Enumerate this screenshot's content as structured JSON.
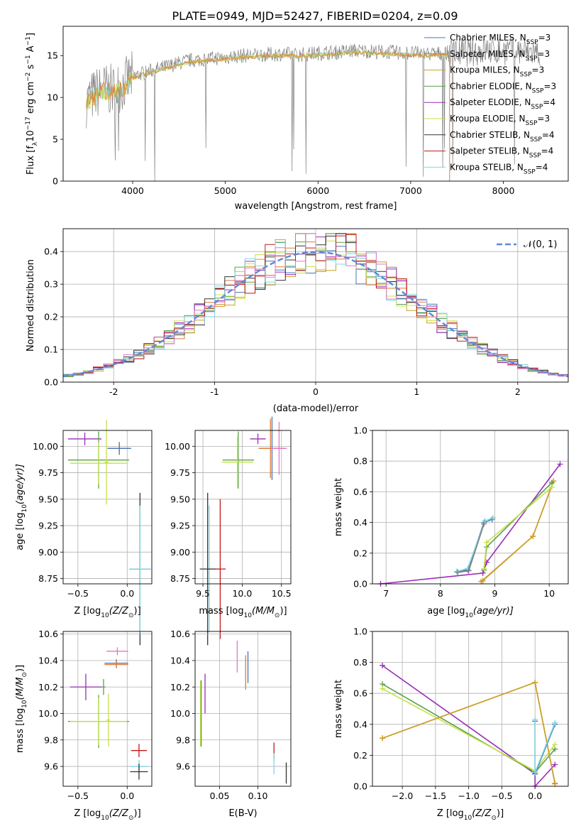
{
  "figure_title": "PLATE=0949, MJD=52427, FIBERID=0204, z=0.09",
  "legend_entries": [
    {
      "label": "Chabrier MILES, N",
      "sub": "SSP",
      "suffix": "=3",
      "color": "#4a76b5"
    },
    {
      "label": "Salpeter MILES, N",
      "sub": "SSP",
      "suffix": "=3",
      "color": "#e07b39"
    },
    {
      "label": "Kroupa MILES, N",
      "sub": "SSP",
      "suffix": "=3",
      "color": "#c9a227"
    },
    {
      "label": "Chabrier ELODIE, N",
      "sub": "SSP",
      "suffix": "=3",
      "color": "#5aa04a"
    },
    {
      "label": "Salpeter ELODIE, N",
      "sub": "SSP",
      "suffix": "=4",
      "color": "#9a2cb8"
    },
    {
      "label": "Kroupa ELODIE, N",
      "sub": "SSP",
      "suffix": "=3",
      "color": "#c6e04a"
    },
    {
      "label": "Chabrier STELIB, N",
      "sub": "SSP",
      "suffix": "=4",
      "color": "#333333"
    },
    {
      "label": "Salpeter STELIB, N",
      "sub": "SSP",
      "suffix": "=4",
      "color": "#c01818"
    },
    {
      "label": "Kroupa STELIB, N",
      "sub": "SSP",
      "suffix": "=4",
      "color": "#7fd7e0"
    }
  ],
  "chart_data": [
    {
      "id": "spectrum",
      "type": "line",
      "xlabel": "wavelength [Angstrom, rest frame]",
      "ylabel": "Flux [f",
      "ylabel_sub": "λ",
      "ylabel_mid": "10",
      "ylabel_sup1": "−17",
      "ylabel_mid2": " erg cm",
      "ylabel_sup2": "−2",
      "ylabel_mid3": " s",
      "ylabel_sup3": "−1",
      "ylabel_mid4": " A",
      "ylabel_sup4": "−1",
      "ylabel_end": "]",
      "xlim": [
        3250,
        8700
      ],
      "ylim": [
        0,
        18.5
      ],
      "xticks": [
        4000,
        5000,
        6000,
        7000,
        8000
      ],
      "yticks": [
        0,
        5,
        10,
        15
      ],
      "data_color": "#808080",
      "model_colors": [
        "#7fd7e0",
        "#c6e04a",
        "#e07b39"
      ],
      "series": [
        {
          "name": "data",
          "x": [
            3500,
            3600,
            3700,
            3800,
            3900,
            4000,
            4200,
            4400,
            4600,
            4800,
            5000,
            5200,
            5400,
            5600,
            5800,
            6000,
            6200,
            6400,
            6600,
            6800,
            7000,
            7200,
            7400,
            7600,
            7800,
            8000,
            8200,
            8400
          ],
          "y": [
            9.5,
            10.5,
            11.0,
            10.8,
            11.5,
            12.5,
            13.2,
            13.8,
            14.4,
            14.6,
            14.8,
            15.0,
            15.1,
            15.2,
            15.1,
            15.3,
            15.4,
            15.6,
            15.5,
            15.4,
            15.3,
            15.2,
            15.3,
            15.4,
            15.6,
            15.6,
            15.5,
            15.3
          ]
        },
        {
          "name": "model",
          "x": [
            3500,
            3600,
            3700,
            3800,
            3900,
            4000,
            4200,
            4400,
            4600,
            4800,
            5000,
            5200,
            5400,
            5600,
            5800,
            6000,
            6200,
            6400,
            6600,
            6800,
            7000,
            7200,
            7400
          ],
          "y": [
            9.3,
            10.2,
            10.8,
            10.6,
            11.2,
            12.3,
            13.0,
            13.6,
            14.2,
            14.4,
            14.6,
            14.8,
            14.9,
            15.0,
            14.9,
            15.1,
            15.2,
            15.4,
            15.3,
            15.2,
            15.1,
            15.0,
            15.1
          ]
        }
      ]
    },
    {
      "id": "residuals",
      "type": "line",
      "xlabel": "(data-model)/error",
      "ylabel": "Normed distribution",
      "xlim": [
        -2.5,
        2.5
      ],
      "ylim": [
        0,
        0.47
      ],
      "xticks": [
        -2,
        -1,
        0,
        1,
        2
      ],
      "yticks": [
        0.0,
        0.1,
        0.2,
        0.3,
        0.4
      ],
      "ytick_labels": [
        "0.0",
        "0.1",
        "0.2",
        "0.3",
        "0.4"
      ],
      "legend_label": "𝒩(0, 1)",
      "gauss_color": "#5b8bd6",
      "hist_colors": [
        "#4a76b5",
        "#e07b39",
        "#c9a227",
        "#5aa04a",
        "#9a2cb8",
        "#c6e04a",
        "#333333",
        "#c01818",
        "#7fd7e0",
        "#e377c2"
      ]
    },
    {
      "id": "age_vs_Z",
      "type": "scatter",
      "xlabel": "Z [log",
      "xlabel_sub": "10",
      "xlabel_rest": "(Z/Z",
      "xlabel_sub2": "⊙",
      "xlabel_end": ")]",
      "ylabel": "age  [log",
      "ylabel_sub": "10",
      "ylabel_rest": "(age/yr)]",
      "xlim": [
        -0.65,
        0.25
      ],
      "ylim": [
        8.7,
        10.15
      ],
      "xticks": [
        -0.5,
        0.0
      ],
      "xtick_labels": [
        "−0.5",
        "0.0"
      ],
      "yticks": [
        8.75,
        9.0,
        9.25,
        9.5,
        9.75,
        10.0
      ],
      "ytick_labels": [
        "8.75",
        "9.00",
        "9.25",
        "9.50",
        "9.75",
        "10.00"
      ],
      "points": [
        {
          "x": -0.43,
          "y": 10.07,
          "xerr": 0.17,
          "yerr": 0.06,
          "color": "#9a2cb8"
        },
        {
          "x": -0.08,
          "y": 9.98,
          "xerr": 0.12,
          "yerr": 0.06,
          "color": "#e07b39"
        },
        {
          "x": -0.08,
          "y": 9.98,
          "xerr": 0.12,
          "yerr": 0.06,
          "color": "#4a76b5"
        },
        {
          "x": -0.29,
          "y": 9.87,
          "xerr": 0.31,
          "yerr": 0.27,
          "color": "#5aa04a"
        },
        {
          "x": -0.29,
          "y": 9.84,
          "xerr": 0.29,
          "yerr": 0.2,
          "color": "#c6e04a"
        },
        {
          "x": -0.21,
          "y": 9.85,
          "xerr": 0.02,
          "yerr": 0.4,
          "color": "#c6e04a"
        },
        {
          "x": 0.13,
          "y": 8.84,
          "xerr": 0.11,
          "yerr": 0.72,
          "color": "#333333"
        },
        {
          "x": 0.13,
          "y": 8.84,
          "xerr": 0.11,
          "yerr": 0.6,
          "color": "#7fd7e0"
        }
      ]
    },
    {
      "id": "age_vs_mass",
      "type": "scatter",
      "xlabel": "mass [log",
      "xlabel_sub": "10",
      "xlabel_rest": "(M/M",
      "xlabel_sub2": "⊙",
      "xlabel_end": ")]",
      "xlim": [
        9.4,
        10.62
      ],
      "ylim": [
        8.7,
        10.15
      ],
      "xticks": [
        9.5,
        10.0,
        10.5
      ],
      "xtick_labels": [
        "9.5",
        "10.0",
        "10.5"
      ],
      "yticks": [
        8.75,
        9.0,
        9.25,
        9.5,
        9.75,
        10.0
      ],
      "ytick_labels": [
        "8.75",
        "9.00",
        "9.25",
        "9.50",
        "9.75",
        "10.00"
      ],
      "points": [
        {
          "x": 10.2,
          "y": 10.07,
          "xerr": 0.1,
          "yerr": 0.05,
          "color": "#9a2cb8"
        },
        {
          "x": 10.38,
          "y": 9.98,
          "xerr": 0.17,
          "yerr": 0.3,
          "color": "#4a76b5"
        },
        {
          "x": 10.36,
          "y": 9.98,
          "xerr": 0.15,
          "yerr": 0.28,
          "color": "#e07b39"
        },
        {
          "x": 10.47,
          "y": 9.98,
          "xerr": 0.1,
          "yerr": 0.25,
          "color": "#e377c2"
        },
        {
          "x": 9.95,
          "y": 9.87,
          "xerr": 0.2,
          "yerr": 0.27,
          "color": "#5aa04a"
        },
        {
          "x": 9.94,
          "y": 9.85,
          "xerr": 0.2,
          "yerr": 0.24,
          "color": "#c6e04a"
        },
        {
          "x": 9.72,
          "y": 8.84,
          "xerr": 0.07,
          "yerr": 0.66,
          "color": "#c01818"
        },
        {
          "x": 9.58,
          "y": 8.84,
          "xerr": 0.07,
          "yerr": 0.6,
          "color": "#7fd7e0"
        },
        {
          "x": 9.56,
          "y": 8.84,
          "xerr": 0.1,
          "yerr": 0.72,
          "color": "#333333"
        }
      ]
    },
    {
      "id": "massweight_vs_age",
      "type": "line",
      "xlabel": "age  [log",
      "xlabel_sub": "10",
      "xlabel_rest": "(age/yr)]",
      "ylabel": "mass weight",
      "xlim": [
        6.75,
        10.35
      ],
      "ylim": [
        0.0,
        1.0
      ],
      "xticks": [
        7,
        8,
        9,
        10
      ],
      "yticks": [
        0.0,
        0.2,
        0.4,
        0.6,
        0.8,
        1.0
      ],
      "ytick_labels": [
        "0.0",
        "0.2",
        "0.4",
        "0.6",
        "0.8",
        "1.0"
      ],
      "series": [
        {
          "color": "#9a2cb8",
          "x": [
            6.9,
            8.78,
            8.85,
            10.2
          ],
          "y": [
            0.0,
            0.07,
            0.14,
            0.78
          ]
        },
        {
          "color": "#e07b39",
          "x": [
            8.75,
            9.7,
            10.08
          ],
          "y": [
            0.015,
            0.31,
            0.67
          ]
        },
        {
          "color": "#c9a227",
          "x": [
            8.78,
            9.7,
            10.08
          ],
          "y": [
            0.02,
            0.31,
            0.67
          ]
        },
        {
          "color": "#5aa04a",
          "x": [
            8.8,
            8.85,
            10.05
          ],
          "y": [
            0.09,
            0.24,
            0.66
          ]
        },
        {
          "color": "#c6e04a",
          "x": [
            8.8,
            8.85,
            10.05
          ],
          "y": [
            0.1,
            0.27,
            0.63
          ]
        },
        {
          "color": "#4a76b5",
          "x": [
            8.3,
            8.5,
            8.8,
            8.95
          ],
          "y": [
            0.08,
            0.09,
            0.4,
            0.42
          ]
        },
        {
          "color": "#7fd7e0",
          "x": [
            8.3,
            8.5,
            8.82,
            8.97
          ],
          "y": [
            0.08,
            0.1,
            0.41,
            0.43
          ]
        },
        {
          "color": "#808080",
          "x": [
            8.32,
            8.52,
            8.8
          ],
          "y": [
            0.075,
            0.085,
            0.39
          ]
        }
      ]
    },
    {
      "id": "mass_vs_Z",
      "type": "scatter",
      "xlabel": "Z [log",
      "xlabel_sub": "10",
      "xlabel_rest": "(Z/Z",
      "xlabel_sub2": "⊙",
      "xlabel_end": ")]",
      "ylabel": "mass [log",
      "ylabel_sub": "10",
      "ylabel_rest": "(M/M",
      "ylabel_sub2": "⊙",
      "ylabel_end": ")]",
      "xlim": [
        -0.65,
        0.25
      ],
      "ylim": [
        9.45,
        10.62
      ],
      "xticks": [
        -0.5,
        0.0
      ],
      "xtick_labels": [
        "−0.5",
        "0.0"
      ],
      "yticks": [
        9.6,
        9.8,
        10.0,
        10.2,
        10.4,
        10.6
      ],
      "ytick_labels": [
        "9.6",
        "9.8",
        "10.0",
        "10.2",
        "10.4",
        "10.6"
      ],
      "points": [
        {
          "x": -0.1,
          "y": 10.47,
          "xerr": 0.11,
          "yerr": 0.03,
          "color": "#e377c2"
        },
        {
          "x": -0.11,
          "y": 10.38,
          "xerr": 0.12,
          "yerr": 0.03,
          "color": "#4a76b5"
        },
        {
          "x": -0.11,
          "y": 10.37,
          "xerr": 0.12,
          "yerr": 0.03,
          "color": "#e07b39"
        },
        {
          "x": -0.42,
          "y": 10.2,
          "xerr": 0.16,
          "yerr": 0.1,
          "color": "#9a2cb8"
        },
        {
          "x": -0.24,
          "y": 10.2,
          "xerr": 0.02,
          "yerr": 0.06,
          "color": "#5aa04a"
        },
        {
          "x": -0.29,
          "y": 9.94,
          "xerr": 0.31,
          "yerr": 0.2,
          "color": "#5aa04a"
        },
        {
          "x": -0.29,
          "y": 9.94,
          "xerr": 0.29,
          "yerr": 0.18,
          "color": "#c6e04a"
        },
        {
          "x": -0.19,
          "y": 9.95,
          "xerr": 0.02,
          "yerr": 0.2,
          "color": "#c6e04a"
        },
        {
          "x": 0.12,
          "y": 9.72,
          "xerr": 0.08,
          "yerr": 0.05,
          "color": "#c01818"
        },
        {
          "x": 0.12,
          "y": 9.6,
          "xerr": 0.09,
          "yerr": 0.05,
          "color": "#7fd7e0"
        },
        {
          "x": 0.12,
          "y": 9.56,
          "xerr": 0.09,
          "yerr": 0.06,
          "color": "#333333"
        }
      ]
    },
    {
      "id": "mass_vs_EBV",
      "type": "scatter",
      "xlabel": "E(B-V)",
      "xlim": [
        0.018,
        0.143
      ],
      "ylim": [
        9.45,
        10.62
      ],
      "xticks": [
        0.05,
        0.1
      ],
      "xtick_labels": [
        "0.05",
        "0.10"
      ],
      "yticks": [
        9.6,
        9.8,
        10.0,
        10.2,
        10.4,
        10.6
      ],
      "ytick_labels": [
        "9.6",
        "9.8",
        "10.0",
        "10.2",
        "10.4",
        "10.6"
      ],
      "points": [
        {
          "x": 0.025,
          "y": 10.0,
          "xerr": 0.0,
          "yerr": 0.25,
          "color": "#c6e04a"
        },
        {
          "x": 0.026,
          "y": 10.0,
          "xerr": 0.0,
          "yerr": 0.25,
          "color": "#5aa04a"
        },
        {
          "x": 0.031,
          "y": 10.15,
          "xerr": 0.0,
          "yerr": 0.15,
          "color": "#9a2cb8"
        },
        {
          "x": 0.073,
          "y": 10.43,
          "xerr": 0.0,
          "yerr": 0.12,
          "color": "#e377c2"
        },
        {
          "x": 0.084,
          "y": 10.31,
          "xerr": 0.0,
          "yerr": 0.13,
          "color": "#e07b39"
        },
        {
          "x": 0.087,
          "y": 10.35,
          "xerr": 0.0,
          "yerr": 0.12,
          "color": "#4a76b5"
        },
        {
          "x": 0.121,
          "y": 9.72,
          "xerr": 0.0,
          "yerr": 0.06,
          "color": "#c01818"
        },
        {
          "x": 0.121,
          "y": 9.62,
          "xerr": 0.0,
          "yerr": 0.08,
          "color": "#7fd7e0"
        },
        {
          "x": 0.137,
          "y": 9.55,
          "xerr": 0.0,
          "yerr": 0.08,
          "color": "#333333"
        }
      ]
    },
    {
      "id": "massweight_vs_Z",
      "type": "line",
      "xlabel": "Z [log",
      "xlabel_sub": "10",
      "xlabel_rest": "(Z/Z",
      "xlabel_sub2": "⊙",
      "xlabel_end": ")]",
      "ylabel": "mass weight",
      "xlim": [
        -2.45,
        0.5
      ],
      "ylim": [
        0.0,
        1.0
      ],
      "xticks": [
        -2.0,
        -1.5,
        -1.0,
        -0.5,
        0.0
      ],
      "xtick_labels": [
        "−2.0",
        "−1.5",
        "−1.0",
        "−0.5",
        "0.0"
      ],
      "yticks": [
        0.0,
        0.2,
        0.4,
        0.6,
        0.8,
        1.0
      ],
      "ytick_labels": [
        "0.0",
        "0.2",
        "0.4",
        "0.6",
        "0.8",
        "1.0"
      ],
      "series": [
        {
          "color": "#9a2cb8",
          "x": [
            -2.3,
            0.0,
            0.0,
            0.3
          ],
          "y": [
            0.78,
            0.08,
            0.0,
            0.14
          ]
        },
        {
          "color": "#5aa04a",
          "x": [
            -2.3,
            0.0,
            0.3
          ],
          "y": [
            0.66,
            0.09,
            0.24
          ]
        },
        {
          "color": "#c6e04a",
          "x": [
            -2.3,
            0.0,
            0.3
          ],
          "y": [
            0.63,
            0.1,
            0.27
          ]
        },
        {
          "color": "#e07b39",
          "x": [
            -2.3,
            0.0,
            0.3
          ],
          "y": [
            0.31,
            0.67,
            0.015
          ]
        },
        {
          "color": "#c9a227",
          "x": [
            -2.3,
            0.0,
            0.3
          ],
          "y": [
            0.31,
            0.67,
            0.02
          ]
        },
        {
          "color": "#4a76b5",
          "x": [
            0.0,
            0.0,
            0.3
          ],
          "y": [
            0.42,
            0.08,
            0.4
          ]
        },
        {
          "color": "#7fd7e0",
          "x": [
            0.0,
            0.0,
            0.3
          ],
          "y": [
            0.43,
            0.09,
            0.41
          ]
        }
      ]
    }
  ]
}
